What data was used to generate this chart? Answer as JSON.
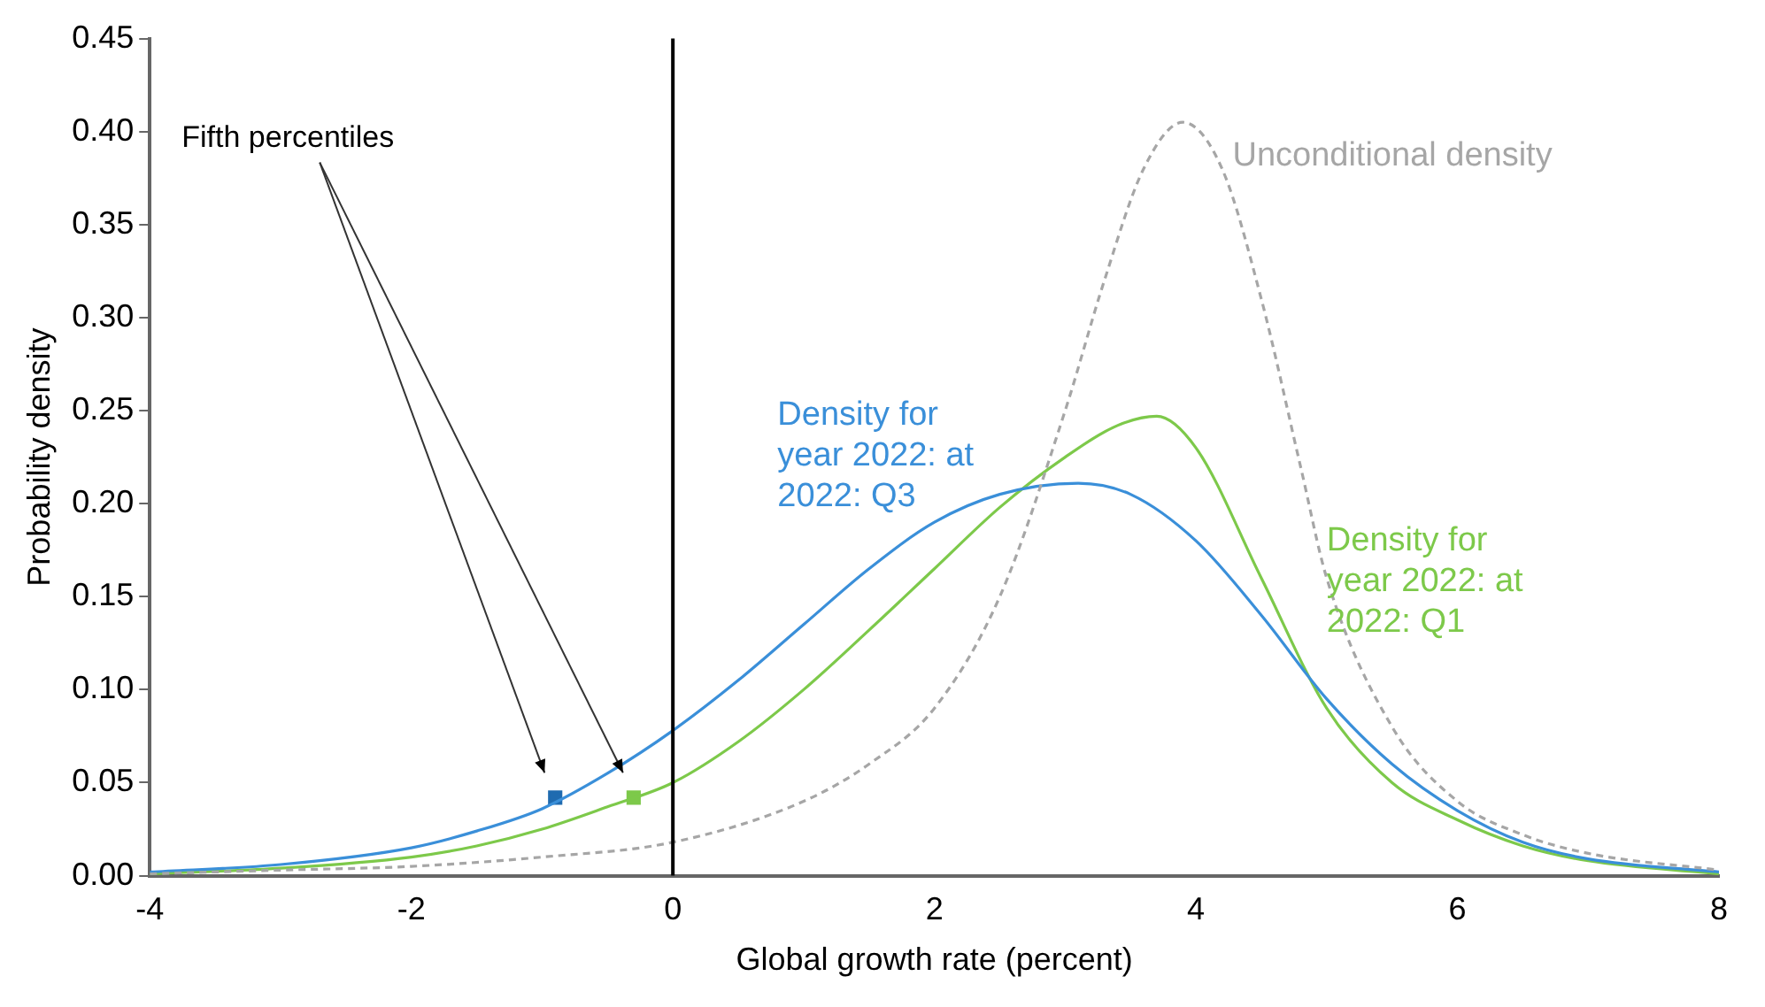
{
  "chart_data": {
    "type": "line",
    "xlabel": "Global growth rate (percent)",
    "ylabel": "Probability density",
    "xlim": [
      -4,
      8
    ],
    "xticks": [
      -4,
      -2,
      0,
      2,
      4,
      6,
      8
    ],
    "ylim": [
      0,
      0.45
    ],
    "yticks": [
      {
        "value": 0,
        "label": "0.00"
      },
      {
        "value": 0.05,
        "label": "0.05"
      },
      {
        "value": 0.1,
        "label": "0.10"
      },
      {
        "value": 0.15,
        "label": "0.15"
      },
      {
        "value": 0.2,
        "label": "0.20"
      },
      {
        "value": 0.25,
        "label": "0.25"
      },
      {
        "value": 0.3,
        "label": "0.30"
      },
      {
        "value": 0.35,
        "label": "0.35"
      },
      {
        "value": 0.4,
        "label": "0.40"
      },
      {
        "value": 0.45,
        "label": "0.45"
      }
    ],
    "grid": false,
    "legend": false,
    "marker": "none",
    "series": [
      {
        "name": "Unconditional density",
        "color": "#a6a6a6",
        "line_style": "dashed",
        "x": [
          -4,
          -3,
          -2,
          -1,
          0,
          1,
          1.5,
          2,
          2.5,
          3,
          3.3,
          3.6,
          3.9,
          4.2,
          4.5,
          4.8,
          5,
          5.5,
          6,
          6.5,
          7,
          8
        ],
        "values": [
          0.001,
          0.003,
          0.005,
          0.01,
          0.018,
          0.04,
          0.06,
          0.09,
          0.15,
          0.25,
          0.32,
          0.38,
          0.405,
          0.38,
          0.31,
          0.22,
          0.16,
          0.08,
          0.04,
          0.022,
          0.012,
          0.003
        ]
      },
      {
        "name": "Density for year 2022: at 2022: Q3",
        "color": "#3a8fd9",
        "line_style": "solid",
        "x": [
          -4,
          -3,
          -2,
          -1.5,
          -1,
          -0.5,
          0,
          0.5,
          1,
          1.5,
          2,
          2.5,
          3.1,
          3.5,
          4,
          4.5,
          5,
          5.5,
          6,
          6.5,
          7,
          8
        ],
        "values": [
          0.002,
          0.006,
          0.015,
          0.024,
          0.036,
          0.055,
          0.078,
          0.105,
          0.135,
          0.165,
          0.19,
          0.205,
          0.211,
          0.205,
          0.18,
          0.14,
          0.095,
          0.06,
          0.035,
          0.018,
          0.009,
          0.002
        ]
      },
      {
        "name": "Density for year 2022: at 2022: Q1",
        "color": "#7dc94a",
        "line_style": "solid",
        "x": [
          -4,
          -3,
          -2,
          -1.5,
          -1,
          -0.5,
          0,
          0.5,
          1,
          1.5,
          2,
          2.5,
          3,
          3.4,
          3.7,
          4,
          4.5,
          5,
          5.5,
          6,
          6.5,
          7,
          8
        ],
        "values": [
          0.001,
          0.004,
          0.01,
          0.016,
          0.025,
          0.037,
          0.05,
          0.072,
          0.1,
          0.132,
          0.165,
          0.198,
          0.225,
          0.242,
          0.247,
          0.23,
          0.16,
          0.09,
          0.05,
          0.03,
          0.016,
          0.008,
          0.001
        ]
      },
      {
        "type": "scatter",
        "marker": "square",
        "color": "#1f6bb0",
        "x": [
          -0.9
        ],
        "values": [
          0.042
        ]
      },
      {
        "type": "scatter",
        "marker": "square",
        "color": "#7dc94a",
        "x": [
          -0.3
        ],
        "values": [
          0.042
        ]
      }
    ],
    "ref_lines": [
      {
        "axis": "x",
        "value": 0,
        "color": "#000000"
      }
    ],
    "annotations": [
      "Fifth percentiles"
    ]
  }
}
